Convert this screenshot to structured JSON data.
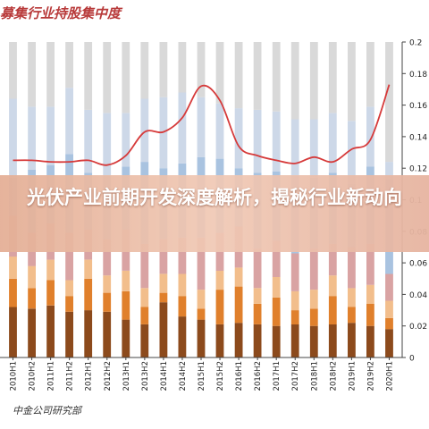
{
  "header": {
    "title": "募集行业持股集中度"
  },
  "footer": {
    "source": "中金公司研究部"
  },
  "overlay": {
    "title": "光伏产业前期开发深度解析，揭秘行业新动向"
  },
  "colors": {
    "stack": [
      "#8c4a1c",
      "#e0802c",
      "#f2be8c",
      "#d9a3a3",
      "#a9c3e0",
      "#cdd8e8",
      "#d9d9d9"
    ],
    "line": "#d63a3a"
  },
  "chart_data": {
    "type": "bar",
    "stacked": true,
    "categories": [
      "2010H1",
      "2010H2",
      "2011H1",
      "2011H2",
      "2012H1",
      "2012H2",
      "2013H1",
      "2013H2",
      "2014H1",
      "2014H2",
      "2015H1",
      "2015H2",
      "2016H1",
      "2016H2",
      "2017H1",
      "2017H2",
      "2018H1",
      "2018H2",
      "2019H1",
      "2019H2",
      "2020H1"
    ],
    "x_tick_labels": [
      "2010H1",
      "2010H2",
      "2011H1",
      "2011H2",
      "2012H1",
      "2012H2",
      "2013H1",
      "2013H2",
      "2014H1",
      "2014H2",
      "2015H1",
      "2015H2",
      "2016H1",
      "2016H2",
      "2017H1",
      "2017H2",
      "2018H1",
      "2018H2",
      "2019H1",
      "2019H2",
      "2020H1"
    ],
    "stacks": [
      [
        0.032,
        0.031,
        0.033,
        0.029,
        0.03,
        0.029,
        0.024,
        0.021,
        0.035,
        0.026,
        0.024,
        0.021,
        0.022,
        0.021,
        0.02,
        0.021,
        0.02,
        0.021,
        0.022,
        0.02,
        0.018
      ],
      [
        0.018,
        0.013,
        0.016,
        0.01,
        0.02,
        0.012,
        0.018,
        0.011,
        0.006,
        0.013,
        0.007,
        0.022,
        0.023,
        0.013,
        0.018,
        0.009,
        0.011,
        0.018,
        0.01,
        0.014,
        0.007
      ],
      [
        0.014,
        0.014,
        0.013,
        0.01,
        0.012,
        0.011,
        0.013,
        0.012,
        0.012,
        0.014,
        0.012,
        0.012,
        0.012,
        0.01,
        0.013,
        0.012,
        0.012,
        0.013,
        0.012,
        0.012,
        0.011
      ],
      [
        0.026,
        0.021,
        0.023,
        0.03,
        0.019,
        0.023,
        0.026,
        0.028,
        0.022,
        0.023,
        0.033,
        0.024,
        0.026,
        0.025,
        0.023,
        0.024,
        0.026,
        0.02,
        0.026,
        0.026,
        0.017
      ],
      [
        0.024,
        0.04,
        0.037,
        0.05,
        0.036,
        0.04,
        0.04,
        0.052,
        0.045,
        0.047,
        0.051,
        0.047,
        0.037,
        0.048,
        0.044,
        0.049,
        0.045,
        0.045,
        0.04,
        0.049,
        0.06
      ],
      [
        0.05,
        0.04,
        0.037,
        0.042,
        0.04,
        0.04,
        0.034,
        0.04,
        0.045,
        0.045,
        0.038,
        0.035,
        0.038,
        0.04,
        0.038,
        0.036,
        0.037,
        0.038,
        0.04,
        0.038,
        0.011
      ],
      [
        0.036,
        0.041,
        0.041,
        0.029,
        0.043,
        0.045,
        0.045,
        0.036,
        0.035,
        0.032,
        0.035,
        0.039,
        0.042,
        0.043,
        0.044,
        0.049,
        0.049,
        0.045,
        0.05,
        0.041,
        0.076
      ]
    ],
    "line": {
      "values": [
        0.125,
        0.125,
        0.124,
        0.124,
        0.125,
        0.122,
        0.128,
        0.143,
        0.143,
        0.152,
        0.172,
        0.163,
        0.134,
        0.128,
        0.125,
        0.123,
        0.127,
        0.124,
        0.132,
        0.138,
        0.173
      ]
    },
    "ylim": [
      0,
      0.2
    ],
    "y_tick_labels": [
      "0",
      "0.02",
      "0.04",
      "0.06",
      "0.08",
      "0.1",
      "0.12",
      "0.14",
      "0.16",
      "0.18",
      "0.2"
    ],
    "legend": "none",
    "grid": false
  }
}
